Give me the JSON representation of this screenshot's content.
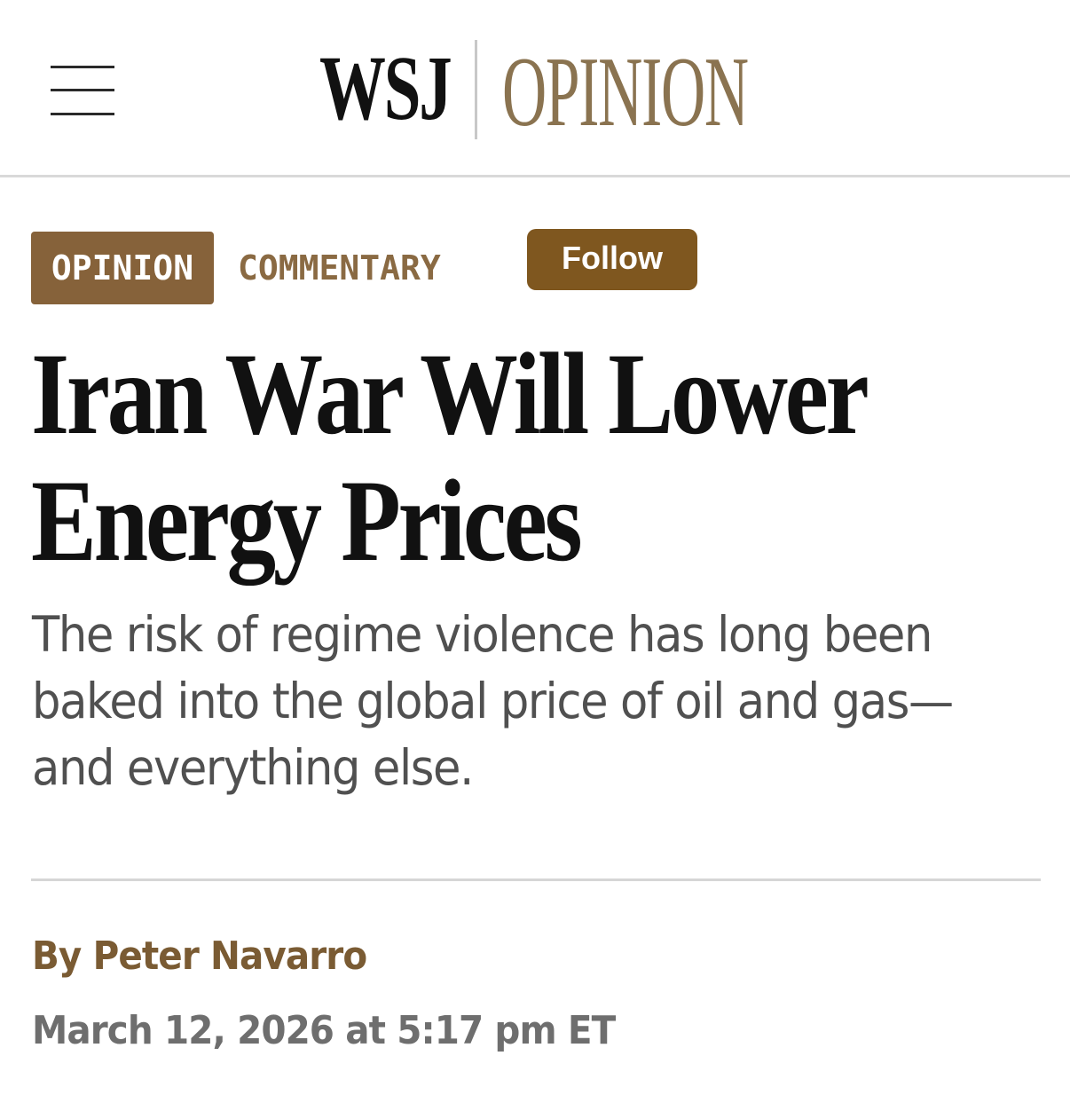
{
  "header": {
    "menu_icon": "hamburger-menu-icon",
    "logo_wsj": "WSJ",
    "logo_section": "OPINION",
    "logo_section_color": "#8a7350"
  },
  "tags": {
    "section": "OPINION",
    "section_bg": "#86623a",
    "category": "COMMENTARY",
    "follow_label": "Follow",
    "follow_bg": "#7f571f"
  },
  "article": {
    "headline_lines": [
      "Iran War Will Lower",
      "Energy Prices"
    ],
    "dek_lines": [
      "The risk of regime violence has long been",
      "baked into the global price of oil and gas—",
      "and everything else."
    ],
    "byline_prefix": "By ",
    "author": "Peter Navarro",
    "author_color": "#7a5b33",
    "timestamp": "March 12, 2026 at 5:17 pm ET"
  }
}
